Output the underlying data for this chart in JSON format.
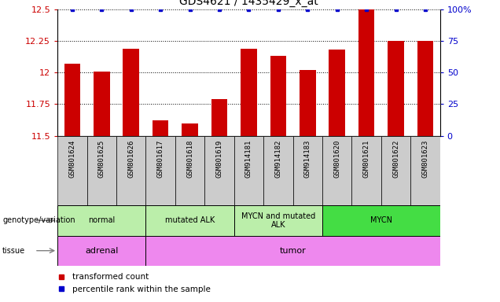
{
  "title": "GDS4621 / 1435429_x_at",
  "samples": [
    "GSM801624",
    "GSM801625",
    "GSM801626",
    "GSM801617",
    "GSM801618",
    "GSM801619",
    "GSM914181",
    "GSM914182",
    "GSM914183",
    "GSM801620",
    "GSM801621",
    "GSM801622",
    "GSM801623"
  ],
  "bar_values": [
    12.07,
    12.01,
    12.19,
    11.62,
    11.6,
    11.79,
    12.19,
    12.13,
    12.02,
    12.18,
    12.5,
    12.25,
    12.25
  ],
  "ylim": [
    11.5,
    12.5
  ],
  "yticks_left": [
    11.5,
    11.75,
    12.0,
    12.25,
    12.5
  ],
  "yticks_right": [
    0,
    25,
    50,
    75,
    100
  ],
  "right_ylim": [
    0,
    100
  ],
  "bar_color": "#cc0000",
  "dot_color": "#0000cc",
  "genotype_groups": [
    {
      "label": "normal",
      "start": 0,
      "end": 3,
      "color": "#bbeeaa"
    },
    {
      "label": "mutated ALK",
      "start": 3,
      "end": 6,
      "color": "#bbeeaa"
    },
    {
      "label": "MYCN and mutated\nALK",
      "start": 6,
      "end": 9,
      "color": "#bbeeaa"
    },
    {
      "label": "MYCN",
      "start": 9,
      "end": 13,
      "color": "#44dd44"
    }
  ],
  "tissue_groups": [
    {
      "label": "adrenal",
      "start": 0,
      "end": 3,
      "color": "#ee88ee"
    },
    {
      "label": "tumor",
      "start": 3,
      "end": 13,
      "color": "#ee88ee"
    }
  ],
  "legend_red_label": "transformed count",
  "legend_blue_label": "percentile rank within the sample",
  "left_label_color": "#cc0000",
  "right_label_color": "#0000cc",
  "bar_color_hex": "#cc0000",
  "dot_color_hex": "#0000cc",
  "tick_label_bg": "#cccccc",
  "tick_label_font": 6.5
}
